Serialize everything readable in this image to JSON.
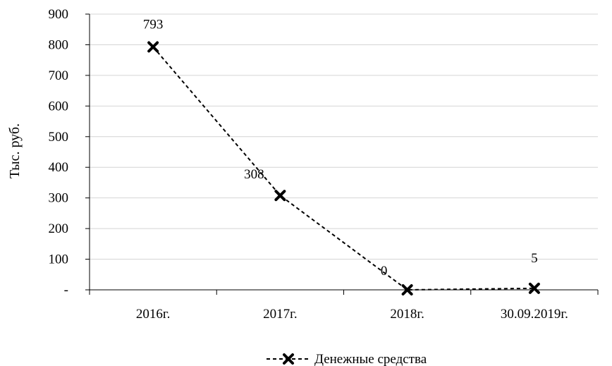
{
  "chart_data": {
    "type": "line",
    "categories": [
      "2016г.",
      "2017г.",
      "2018г.",
      "30.09.2019г."
    ],
    "series": [
      {
        "name": "Денежные средства",
        "values": [
          793,
          308,
          0,
          5
        ],
        "labels": [
          "793",
          "308",
          "0",
          "5"
        ]
      }
    ],
    "ylabel": "Тыс. руб.",
    "ylim": [
      0,
      900
    ],
    "yticks": [
      0,
      100,
      200,
      300,
      400,
      500,
      600,
      700,
      800,
      900
    ],
    "ytick_labels": [
      "-",
      "100",
      "200",
      "300",
      "400",
      "500",
      "600",
      "700",
      "800",
      "900"
    ],
    "grid": true,
    "legend_position": "bottom",
    "line_style": "dashed",
    "marker": "x",
    "colors": {
      "series": "#000000",
      "grid": "#d4d4d4"
    }
  }
}
